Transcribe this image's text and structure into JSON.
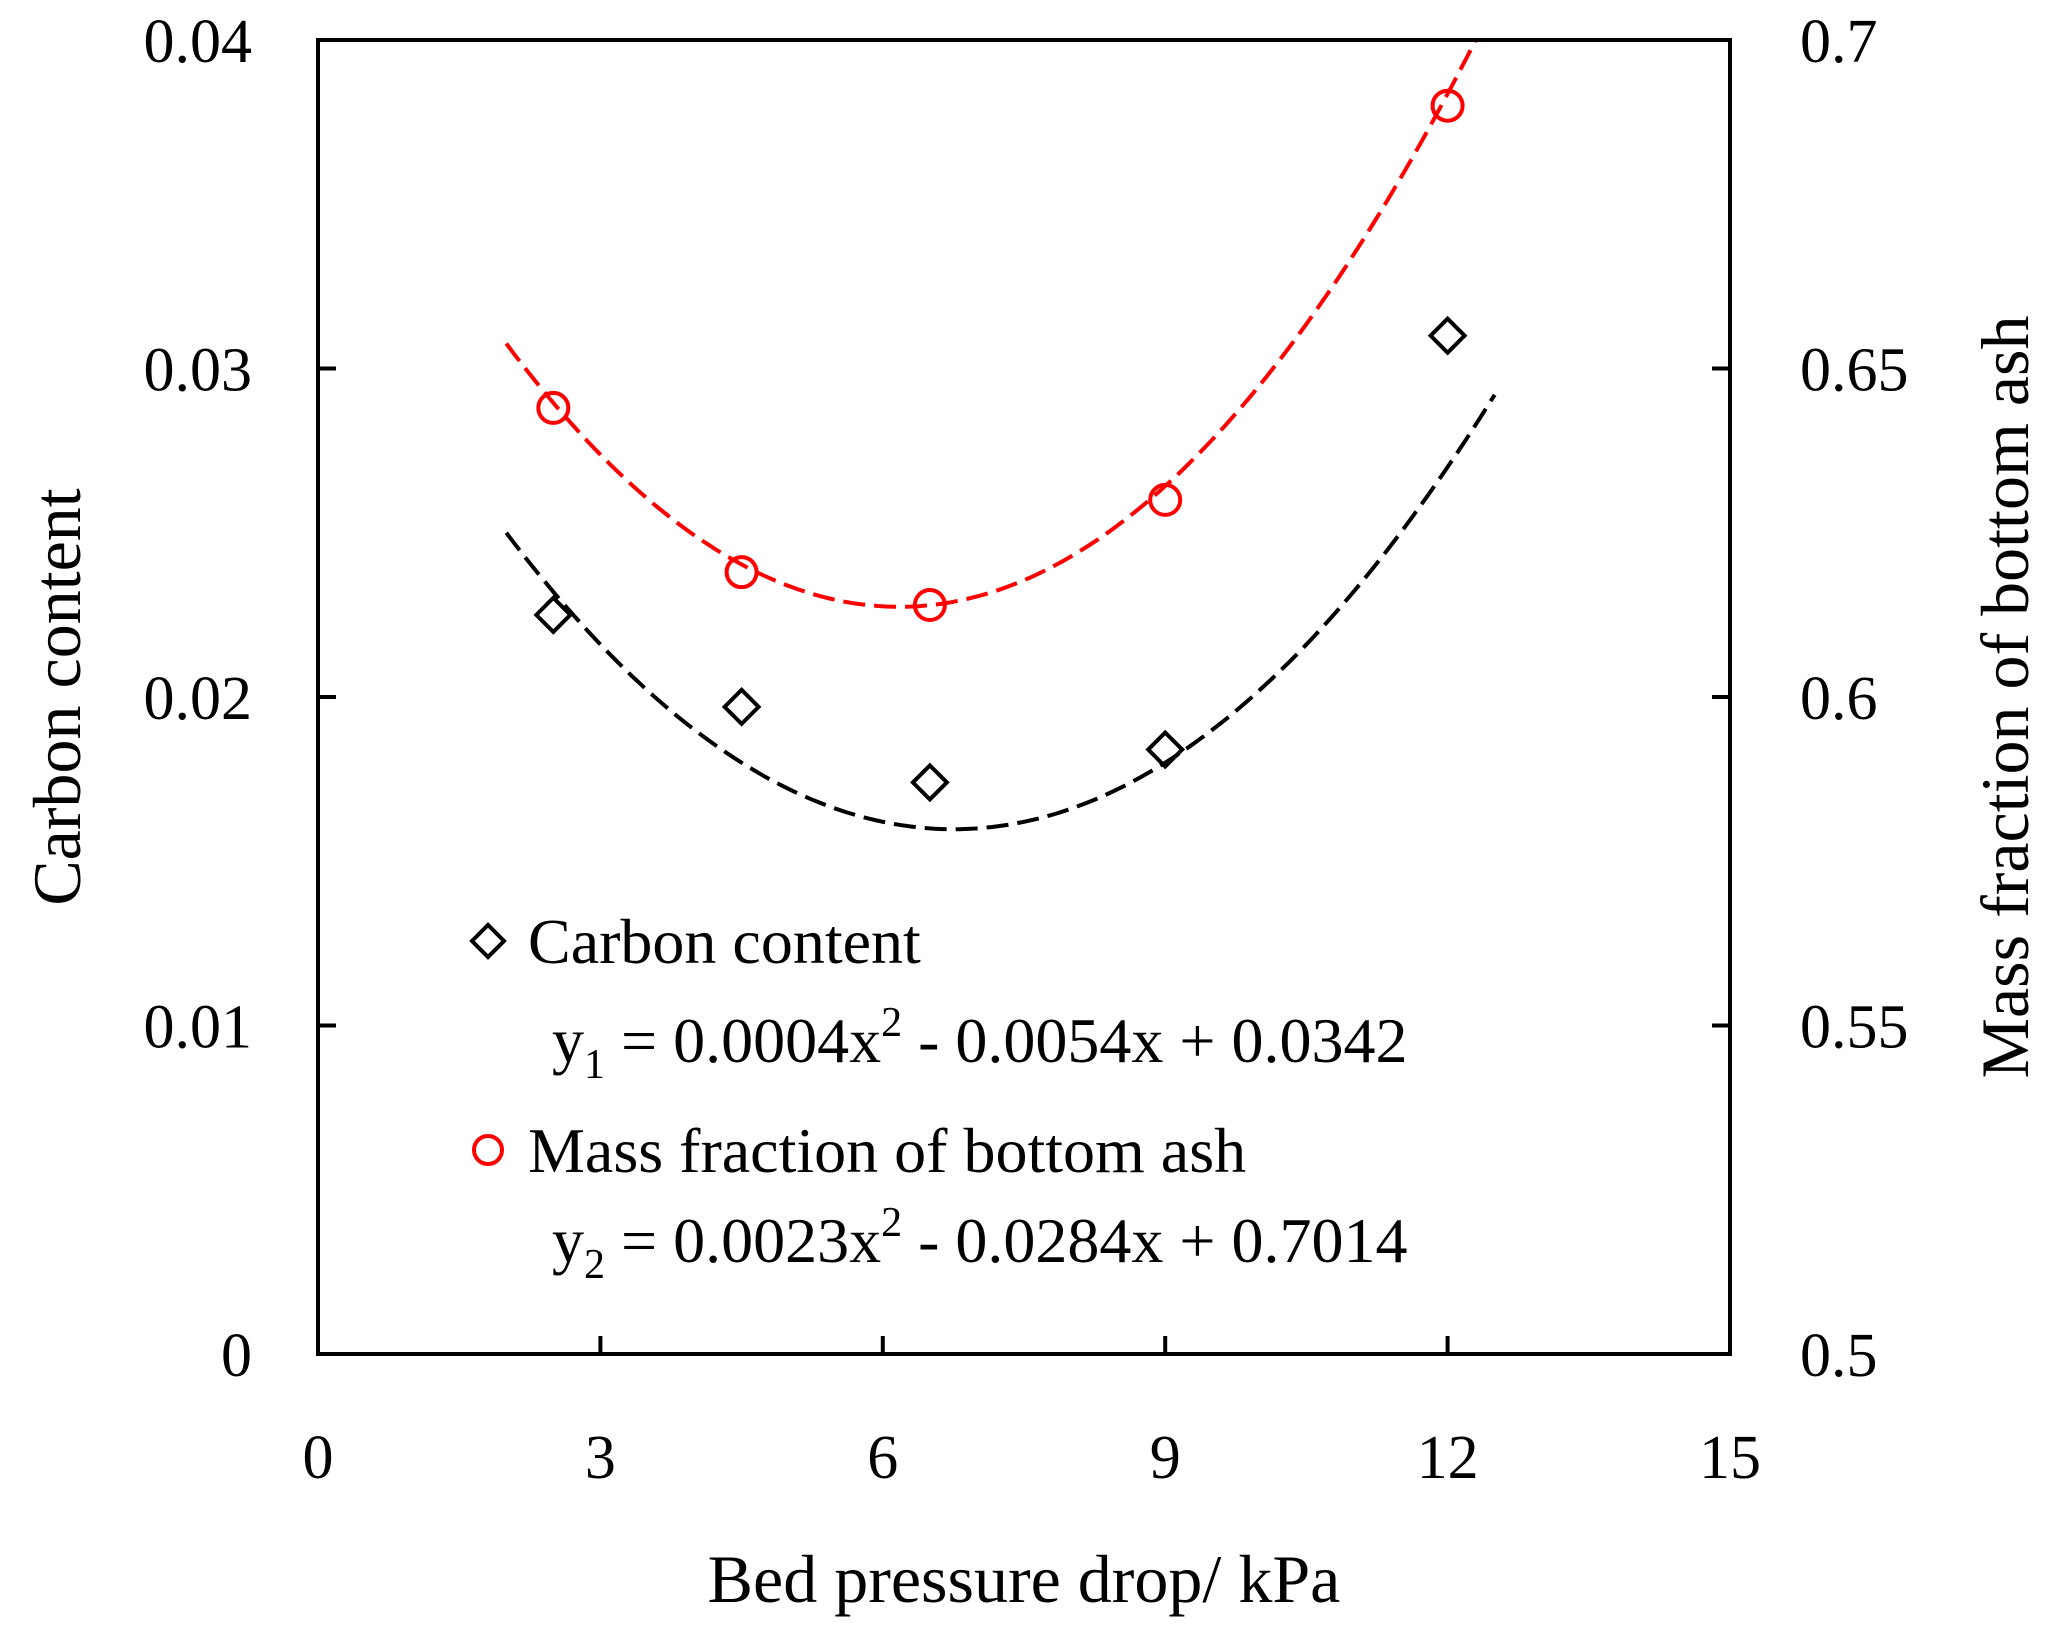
{
  "chart_data": {
    "type": "scatter",
    "xlabel": "Bed pressure drop/ kPa",
    "ylabel": "Carbon content",
    "y2label": "Mass fraction of bottom ash",
    "xlim": [
      0,
      15
    ],
    "ylim": [
      0,
      0.04
    ],
    "y2lim": [
      0.5,
      0.7
    ],
    "xticks": [
      "0",
      "3",
      "6",
      "9",
      "12",
      "15"
    ],
    "yticks": [
      "0",
      "0.01",
      "0.02",
      "0.03",
      "0.04"
    ],
    "y2ticks": [
      "0.5",
      "0.55",
      "0.6",
      "0.65",
      "0.7"
    ],
    "series": [
      {
        "name": "Carbon content",
        "axis": "left",
        "marker": "diamond",
        "color": "#000000",
        "x": [
          2.5,
          4.5,
          6.5,
          9,
          12
        ],
        "y": [
          0.0225,
          0.0197,
          0.0174,
          0.0184,
          0.031
        ],
        "fit": {
          "y_label": "y",
          "subscript": "1",
          "coef_a": 0.0004,
          "coef_b": -0.0054,
          "coef_c": 0.0342,
          "x_range": [
            2.0,
            12.5
          ],
          "text_start": " = 0.0004x",
          "sup": "2",
          "text_end": " - 0.0054x + 0.0342"
        }
      },
      {
        "name": "Mass fraction of bottom ash",
        "axis": "right",
        "marker": "circle",
        "color": "#ff0000",
        "x": [
          2.5,
          4.5,
          6.5,
          9,
          12
        ],
        "y": [
          0.644,
          0.619,
          0.614,
          0.63,
          0.69
        ],
        "fit": {
          "y_label": "y",
          "subscript": "2",
          "coef_a": 0.0023,
          "coef_b": -0.0284,
          "coef_c": 0.7014,
          "x_range": [
            2.0,
            12.3
          ],
          "text_start": " = 0.0023x",
          "sup": "2",
          "text_end": " - 0.0284x + 0.7014"
        }
      }
    ],
    "legend_position": "bottom-left"
  }
}
